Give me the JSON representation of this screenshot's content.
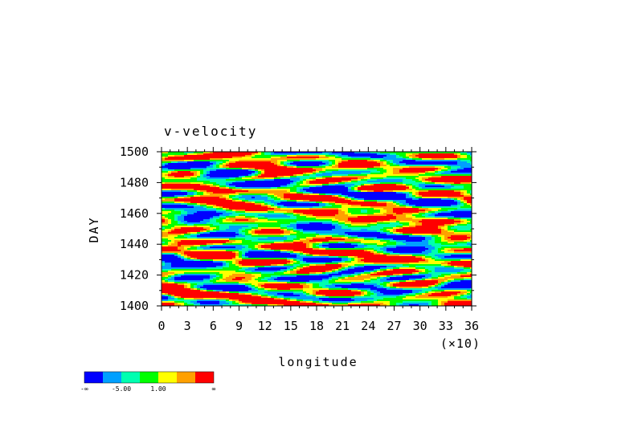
{
  "chart_data": {
    "type": "heatmap",
    "title": "v-velocity",
    "xlabel": "longitude",
    "x_scale_note": "(×10)",
    "ylabel": "DAY",
    "x_ticks": [
      "0",
      "3",
      "6",
      "9",
      "12",
      "15",
      "18",
      "21",
      "24",
      "27",
      "30",
      "33",
      "36"
    ],
    "y_ticks": [
      "1400",
      "1420",
      "1440",
      "1460",
      "1480",
      "1500"
    ],
    "xlim": [
      0,
      360
    ],
    "ylim": [
      1400,
      1500
    ],
    "colorbar": {
      "colors": [
        "#0000ff",
        "#00a0ff",
        "#00ffb0",
        "#00ff00",
        "#ffff00",
        "#ffa000",
        "#ff0000"
      ],
      "labels": [
        "-∞",
        "-5.00",
        "1.00",
        "∞"
      ]
    }
  }
}
